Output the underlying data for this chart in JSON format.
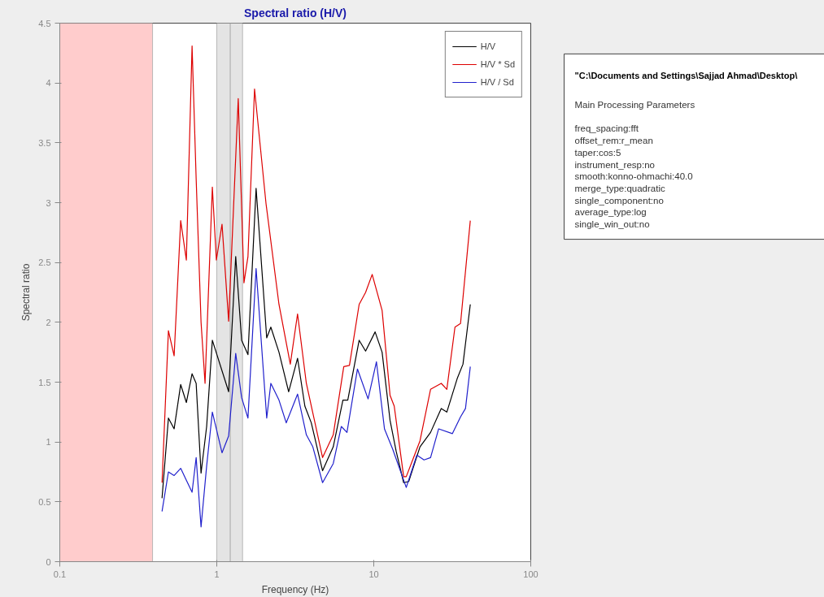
{
  "chart_data": [
    {
      "type": "line",
      "title": "Spectral ratio (H/V)",
      "xlabel": "Frequency (Hz)",
      "ylabel": "Spectral ratio",
      "log": "x",
      "xlim": [
        0.1,
        100
      ],
      "xticks": [
        0.1,
        1,
        10,
        100
      ],
      "ylim": [
        0,
        4.5
      ],
      "yticks": [
        0,
        0.5,
        1,
        1.5,
        2,
        2.5,
        3,
        3.5,
        4,
        4.5
      ],
      "grid": false,
      "legend": "top right",
      "line_style": "solid",
      "marker": "none",
      "bands": [
        {
          "axis": "x",
          "from": 0.1,
          "to": 0.39,
          "color": "#ffcccc"
        },
        {
          "axis": "x",
          "from": 1.0,
          "to": 1.22,
          "color": "#e4e4e4"
        },
        {
          "axis": "x",
          "from": 1.22,
          "to": 1.46,
          "color": "#e4e4e4"
        }
      ],
      "series": [
        {
          "name": "H/V",
          "color": "#000000",
          "x": [
            0.448,
            0.492,
            0.535,
            0.589,
            0.64,
            0.696,
            0.739,
            0.794,
            0.862,
            0.937,
            1.19,
            1.32,
            1.44,
            1.58,
            1.78,
            2.08,
            2.21,
            2.49,
            2.87,
            3.27,
            3.64,
            4.0,
            4.72,
            5.52,
            6.36,
            6.83,
            8.07,
            8.87,
            10.2,
            11.3,
            12.7,
            13.9,
            15.5,
            16.7,
            19.7,
            23.0,
            26.9,
            29.2,
            34.0,
            37.0,
            41.2
          ],
          "values": [
            0.53,
            1.2,
            1.11,
            1.48,
            1.33,
            1.57,
            1.49,
            0.74,
            1.13,
            1.85,
            1.42,
            2.55,
            1.85,
            1.73,
            3.12,
            1.87,
            1.96,
            1.75,
            1.42,
            1.7,
            1.3,
            1.16,
            0.76,
            0.96,
            1.35,
            1.35,
            1.85,
            1.76,
            1.92,
            1.75,
            1.18,
            0.92,
            0.66,
            0.67,
            0.96,
            1.08,
            1.28,
            1.25,
            1.53,
            1.65,
            2.15
          ]
        },
        {
          "name": "H/V * Sd",
          "color": "#dd0000",
          "x": [
            0.448,
            0.492,
            0.535,
            0.589,
            0.64,
            0.696,
            0.739,
            0.794,
            0.842,
            0.937,
            0.994,
            1.08,
            1.19,
            1.37,
            1.49,
            1.58,
            1.74,
            2.06,
            2.49,
            2.94,
            3.27,
            3.72,
            4.72,
            5.52,
            6.44,
            7.0,
            8.07,
            8.87,
            9.77,
            11.3,
            12.7,
            13.5,
            15.5,
            16.1,
            19.7,
            23.0,
            26.9,
            29.2,
            32.9,
            35.7,
            41.2
          ],
          "values": [
            0.66,
            1.93,
            1.72,
            2.85,
            2.52,
            4.31,
            3.2,
            2.0,
            1.49,
            3.13,
            2.52,
            2.82,
            2.01,
            3.87,
            2.33,
            2.55,
            3.95,
            2.99,
            2.15,
            1.65,
            2.07,
            1.49,
            0.87,
            1.06,
            1.63,
            1.64,
            2.15,
            2.25,
            2.4,
            2.1,
            1.39,
            1.3,
            0.71,
            0.71,
            1.01,
            1.44,
            1.49,
            1.44,
            1.96,
            1.99,
            2.85
          ]
        },
        {
          "name": "H/V / Sd",
          "color": "#2020cc",
          "x": [
            0.448,
            0.492,
            0.535,
            0.589,
            0.64,
            0.696,
            0.739,
            0.794,
            0.862,
            0.937,
            1.08,
            1.19,
            1.32,
            1.44,
            1.58,
            1.78,
            2.08,
            2.21,
            2.49,
            2.77,
            3.27,
            3.72,
            4.09,
            4.72,
            5.52,
            6.21,
            6.75,
            7.87,
            9.2,
            10.4,
            11.7,
            13.2,
            16.1,
            18.8,
            20.9,
            23.0,
            25.9,
            31.7,
            35.7,
            38.4,
            41.2
          ],
          "values": [
            0.42,
            0.75,
            0.72,
            0.78,
            0.68,
            0.58,
            0.87,
            0.29,
            0.8,
            1.25,
            0.91,
            1.05,
            1.74,
            1.37,
            1.2,
            2.45,
            1.2,
            1.49,
            1.35,
            1.16,
            1.4,
            1.06,
            0.96,
            0.66,
            0.82,
            1.13,
            1.08,
            1.61,
            1.36,
            1.67,
            1.11,
            0.94,
            0.62,
            0.89,
            0.85,
            0.87,
            1.11,
            1.07,
            1.21,
            1.28,
            1.63
          ]
        }
      ]
    },
    {
      "type": "other",
      "title": "\"C:\\Documents and Settings\\Sajjad Ahmad\\Desktop\\",
      "annotations": [
        "Main Processing Parameters",
        "freq_spacing:fft",
        "offset_rem:r_mean",
        "taper:cos:5",
        "instrument_resp:no",
        "smooth:konno-ohmachi:40.0",
        "merge_type:quadratic",
        "single_component:no",
        "average_type:log",
        "single_win_out:no"
      ]
    }
  ]
}
